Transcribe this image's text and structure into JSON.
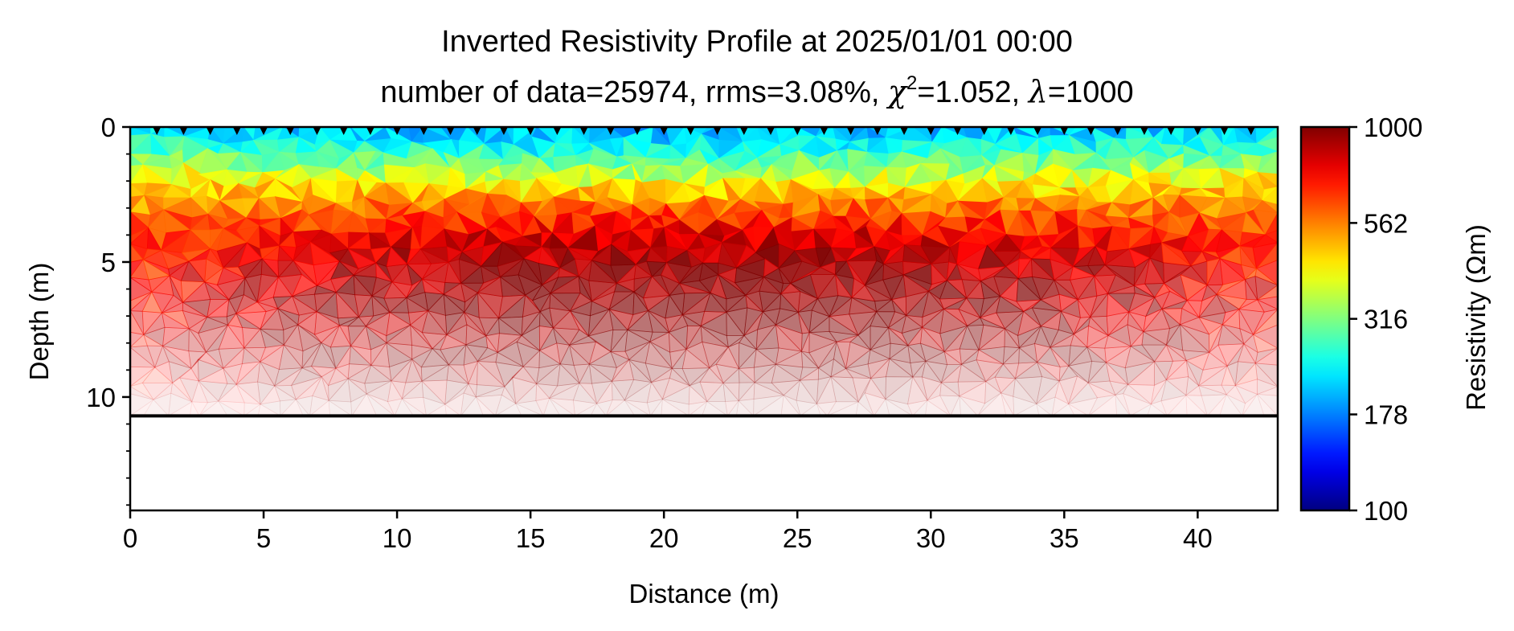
{
  "title": "Inverted Resistivity Profile at 2025/01/01 00:00",
  "subtitle": {
    "prefix": "number of data=25974, rrms=3.08%, ",
    "chi_symbol": "χ",
    "chi_exp": "2",
    "chi_value": "=1.052, ",
    "lambda_symbol": "λ",
    "lambda_value": "=1000"
  },
  "chart_data": {
    "type": "heatmap",
    "title": "Inverted Resistivity Profile at 2025/01/01 00:00",
    "subtitle": "number of data=25974, rrms=3.08%, χ2=1.052, λ=1000",
    "xlabel": "Distance (m)",
    "ylabel": "Depth (m)",
    "xlim": [
      0,
      43
    ],
    "ylim": [
      14.2,
      0
    ],
    "x_ticks": [
      0,
      5,
      10,
      15,
      20,
      25,
      30,
      35,
      40
    ],
    "y_ticks": [
      0,
      5,
      10
    ],
    "y_minor_ticks": [
      1,
      2,
      3,
      4,
      6,
      7,
      8,
      9,
      11,
      12,
      13,
      14
    ],
    "colorbar": {
      "label": "Resistivity (Ωm)",
      "scale": "log",
      "colormap": "jet",
      "range": [
        100,
        1000
      ],
      "ticks": [
        100,
        178,
        316,
        562,
        1000
      ],
      "tick_labels": [
        "100",
        "178",
        "316",
        "562",
        "1000"
      ]
    },
    "electrodes_x": [
      1,
      2,
      3,
      4,
      5,
      6,
      7,
      8,
      9,
      10,
      11,
      12,
      13,
      14,
      15,
      16,
      17,
      18,
      19,
      20,
      21,
      22,
      23,
      24,
      25,
      26,
      27,
      28,
      29,
      30,
      31,
      32,
      33,
      34,
      35,
      36,
      37,
      38,
      39,
      40,
      41,
      42
    ],
    "depth_of_investigation": 10.7,
    "depth_profile": {
      "depth": [
        0,
        0.8,
        1.6,
        2.4,
        3.2,
        4.0,
        5.0,
        6.5,
        8.0,
        9.5,
        10.7
      ],
      "resistivity_center": [
        190,
        240,
        330,
        470,
        640,
        820,
        930,
        1000,
        1000,
        1000,
        1000
      ],
      "resistivity_edges": [
        220,
        280,
        380,
        500,
        560,
        620,
        680,
        720,
        760,
        780,
        800
      ]
    },
    "transparency": {
      "depth": [
        0,
        4.5,
        6,
        8,
        10,
        10.7
      ],
      "opacity_center": [
        1,
        1,
        0.78,
        0.42,
        0.12,
        0.05
      ],
      "opacity_edges": [
        1,
        0.95,
        0.6,
        0.3,
        0.08,
        0.04
      ]
    }
  }
}
